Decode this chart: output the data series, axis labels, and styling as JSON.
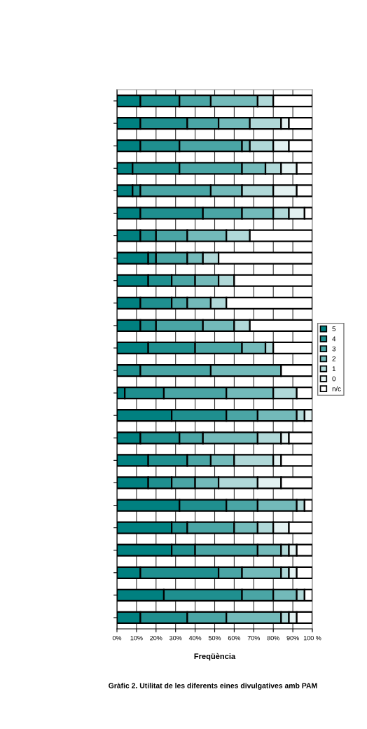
{
  "chart_data": {
    "type": "bar",
    "orientation": "horizontal",
    "stacked": true,
    "xlabel": "Freqüència",
    "annotations": [
      "Gràfic 2. Utilitat de les diferents eines divulgatives amb PAM"
    ],
    "categories": [
      null,
      null,
      null,
      null,
      null,
      null,
      null,
      null,
      null,
      null,
      null,
      null,
      null,
      null,
      null,
      null,
      null,
      null,
      null,
      null,
      null,
      null,
      null,
      null
    ],
    "series": [
      {
        "name": "5",
        "color": "#008080",
        "values": [
          12,
          12,
          12,
          8,
          8,
          12,
          12,
          16,
          16,
          12,
          12,
          16,
          0,
          4,
          28,
          12,
          16,
          16,
          32,
          28,
          28,
          12,
          24,
          12
        ]
      },
      {
        "name": "4",
        "color": "#1f8f8f",
        "values": [
          20,
          24,
          20,
          24,
          4,
          32,
          8,
          4,
          12,
          16,
          8,
          24,
          12,
          20,
          28,
          20,
          20,
          12,
          24,
          8,
          12,
          40,
          40,
          24
        ]
      },
      {
        "name": "3",
        "color": "#4aa5a5",
        "values": [
          16,
          16,
          32,
          32,
          36,
          20,
          16,
          16,
          12,
          8,
          24,
          24,
          36,
          32,
          16,
          12,
          12,
          12,
          16,
          24,
          32,
          12,
          16,
          20
        ]
      },
      {
        "name": "2",
        "color": "#73baba",
        "values": [
          24,
          16,
          4,
          12,
          16,
          16,
          20,
          8,
          12,
          12,
          16,
          12,
          36,
          24,
          20,
          28,
          12,
          12,
          20,
          12,
          12,
          20,
          12,
          28
        ]
      },
      {
        "name": "1",
        "color": "#b0d8d8",
        "values": [
          8,
          16,
          12,
          8,
          16,
          8,
          12,
          8,
          8,
          8,
          8,
          4,
          0,
          12,
          4,
          12,
          20,
          20,
          4,
          8,
          4,
          4,
          4,
          4
        ]
      },
      {
        "name": "0",
        "color": "#e3f1f1",
        "values": [
          0,
          4,
          8,
          8,
          12,
          8,
          0,
          0,
          0,
          0,
          0,
          0,
          0,
          0,
          4,
          4,
          4,
          12,
          0,
          8,
          4,
          4,
          0,
          4
        ]
      },
      {
        "name": "n/c",
        "color": "#ffffff",
        "values": [
          20,
          12,
          12,
          8,
          8,
          4,
          32,
          48,
          40,
          44,
          32,
          20,
          16,
          8,
          0,
          12,
          16,
          16,
          4,
          12,
          8,
          8,
          4,
          8
        ]
      }
    ],
    "xlim": [
      0,
      100
    ],
    "xticks": [
      {
        "value": 0,
        "label": "0%"
      },
      {
        "value": 10,
        "label": "10%"
      },
      {
        "value": 20,
        "label": "20%"
      },
      {
        "value": 30,
        "label": "30%"
      },
      {
        "value": 40,
        "label": "40%"
      },
      {
        "value": 50,
        "label": "50%"
      },
      {
        "value": 60,
        "label": "60%"
      },
      {
        "value": 70,
        "label": "70%"
      },
      {
        "value": 80,
        "label": "80%"
      },
      {
        "value": 90,
        "label": "90%"
      },
      {
        "value": 100,
        "label": "100 %"
      }
    ],
    "grid": "x",
    "legend": "right"
  }
}
